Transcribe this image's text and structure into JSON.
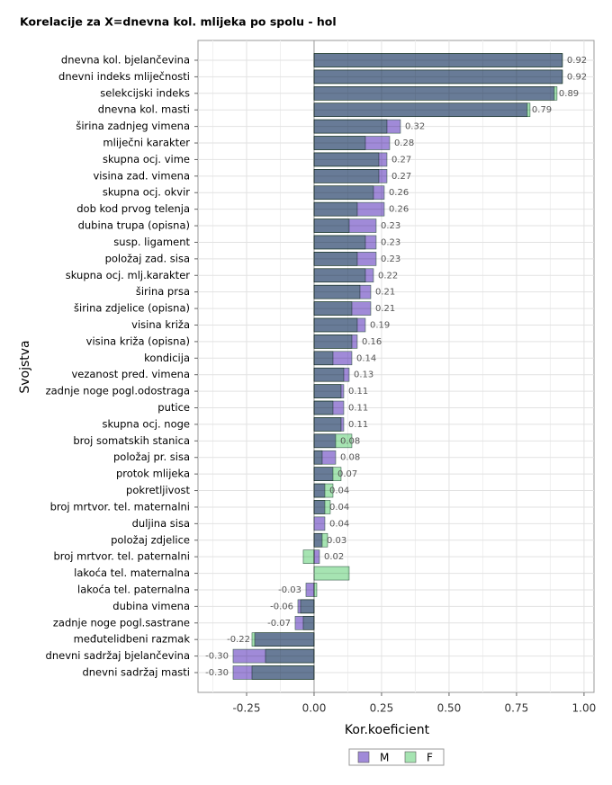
{
  "chart_data": {
    "type": "overlapping-barh",
    "title": "Korelacije za X=dnevna kol. mlijeka po spolu - hol",
    "xlabel": "Kor.koeficient",
    "ylabel": "Svojstva",
    "categories": [
      "dnevna kol. bjelančevina",
      "dnevni indeks mliječnosti",
      "selekcijski indeks",
      "dnevna kol. masti",
      "širina zadnjeg vimena",
      "mliječni karakter",
      "skupna ocj. vime",
      "visina zad. vimena",
      "skupna ocj. okvir",
      "dob kod prvog telenja",
      "dubina trupa (opisna)",
      "susp. ligament",
      "položaj zad. sisa",
      "skupna ocj. mlj.karakter",
      "širina prsa",
      "širina zdjelice (opisna)",
      "visina križa",
      "visina križa (opisna)",
      "kondicija",
      "vezanost pred. vimena",
      "zadnje noge pogl.odostraga",
      "putice",
      "skupna ocj. noge",
      "broj somatskih stanica",
      "položaj pr. sisa",
      "protok mlijeka",
      "pokretljivost",
      "broj mrtvor. tel. maternalni",
      "duljina sisa",
      "položaj zdjelice",
      "broj mrtvor. tel. paternalni",
      "lakoća tel. maternalna",
      "lakoća tel. paternalna",
      "dubina vimena",
      "zadnje noge pogl.sastrane",
      "međutelidbeni razmak",
      "dnevni sadržaj bjelančevina",
      "dnevni sadržaj masti"
    ],
    "series": [
      {
        "name": "M",
        "color": "#a08ad8",
        "values": [
          0.92,
          0.92,
          0.89,
          0.79,
          0.32,
          0.28,
          0.27,
          0.27,
          0.26,
          0.26,
          0.23,
          0.23,
          0.23,
          0.22,
          0.21,
          0.21,
          0.19,
          0.16,
          0.14,
          0.13,
          0.11,
          0.11,
          0.11,
          0.08,
          0.08,
          0.07,
          0.04,
          0.04,
          0.04,
          0.03,
          0.02,
          null,
          -0.03,
          -0.06,
          -0.07,
          -0.22,
          -0.3,
          -0.3
        ],
        "value_labels": [
          "0.92",
          "0.92",
          "0.89",
          "0.79",
          "0.32",
          "0.28",
          "0.27",
          "0.27",
          "0.26",
          "0.26",
          "0.23",
          "0.23",
          "0.23",
          "0.22",
          "0.21",
          "0.21",
          "0.19",
          "0.16",
          "0.14",
          "0.13",
          "0.11",
          "0.11",
          "0.11",
          "0.08",
          "0.08",
          "0.07",
          "0.04",
          "0.04",
          "0.04",
          "0.03",
          "0.02",
          null,
          "-0.03",
          "-0.06",
          "-0.07",
          "-0.22",
          "-0.30",
          "-0.30"
        ]
      },
      {
        "name": "F",
        "color": "#a6e4b2",
        "values": [
          0.92,
          0.92,
          0.9,
          0.8,
          0.27,
          0.19,
          0.24,
          0.24,
          0.22,
          0.16,
          0.13,
          0.19,
          0.16,
          0.19,
          0.17,
          0.14,
          0.16,
          0.14,
          0.07,
          0.11,
          0.1,
          0.07,
          0.1,
          0.14,
          0.03,
          0.1,
          0.07,
          0.06,
          null,
          0.05,
          -0.04,
          0.13,
          0.01,
          -0.05,
          -0.04,
          -0.23,
          -0.18,
          -0.23
        ]
      }
    ],
    "xlim": [
      -0.43,
      1.037
    ],
    "xticks": [
      {
        "value": -0.25,
        "label": "-0.25"
      },
      {
        "value": 0,
        "label": "0.00"
      },
      {
        "value": 0.25,
        "label": "0.25"
      },
      {
        "value": 0.5,
        "label": "0.50"
      },
      {
        "value": 0.75,
        "label": "0.75"
      },
      {
        "value": 1,
        "label": "1.00"
      }
    ],
    "grid": true
  }
}
